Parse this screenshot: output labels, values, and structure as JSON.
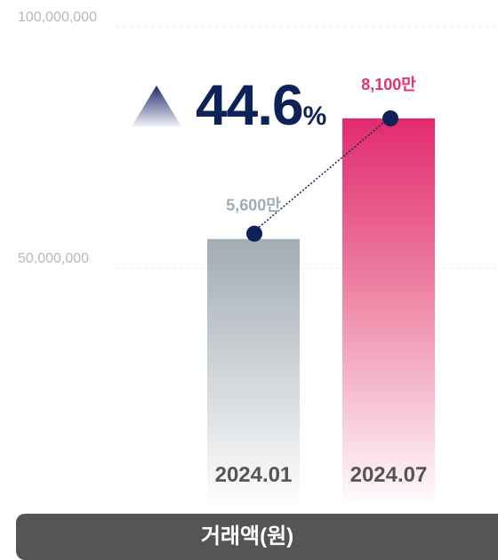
{
  "chart_data": {
    "type": "bar",
    "categories": [
      "2024.01",
      "2024.07"
    ],
    "series": [
      {
        "values": [
          56000000,
          81000000
        ]
      }
    ],
    "value_labels": [
      "5,600만",
      "8,100만"
    ],
    "y_ticks": [
      "100,000,000",
      "50,000,000"
    ],
    "y_tick_values": [
      100000000,
      50000000
    ],
    "ylim": [
      0,
      100000000
    ],
    "grid": true,
    "line_overlay": true,
    "growth": {
      "value": "44.6",
      "unit": "%",
      "direction": "up"
    },
    "xlabel": "거래액(원)",
    "colors": {
      "bar_1": "#a2acb3",
      "bar_2": "#e22a6e",
      "label_1": "#a2acb3",
      "label_2": "#e2336f",
      "marker": "#0d2258",
      "axis_text": "#b8b8b8",
      "category_text": "#555555",
      "footer_bg": "#555555"
    }
  }
}
